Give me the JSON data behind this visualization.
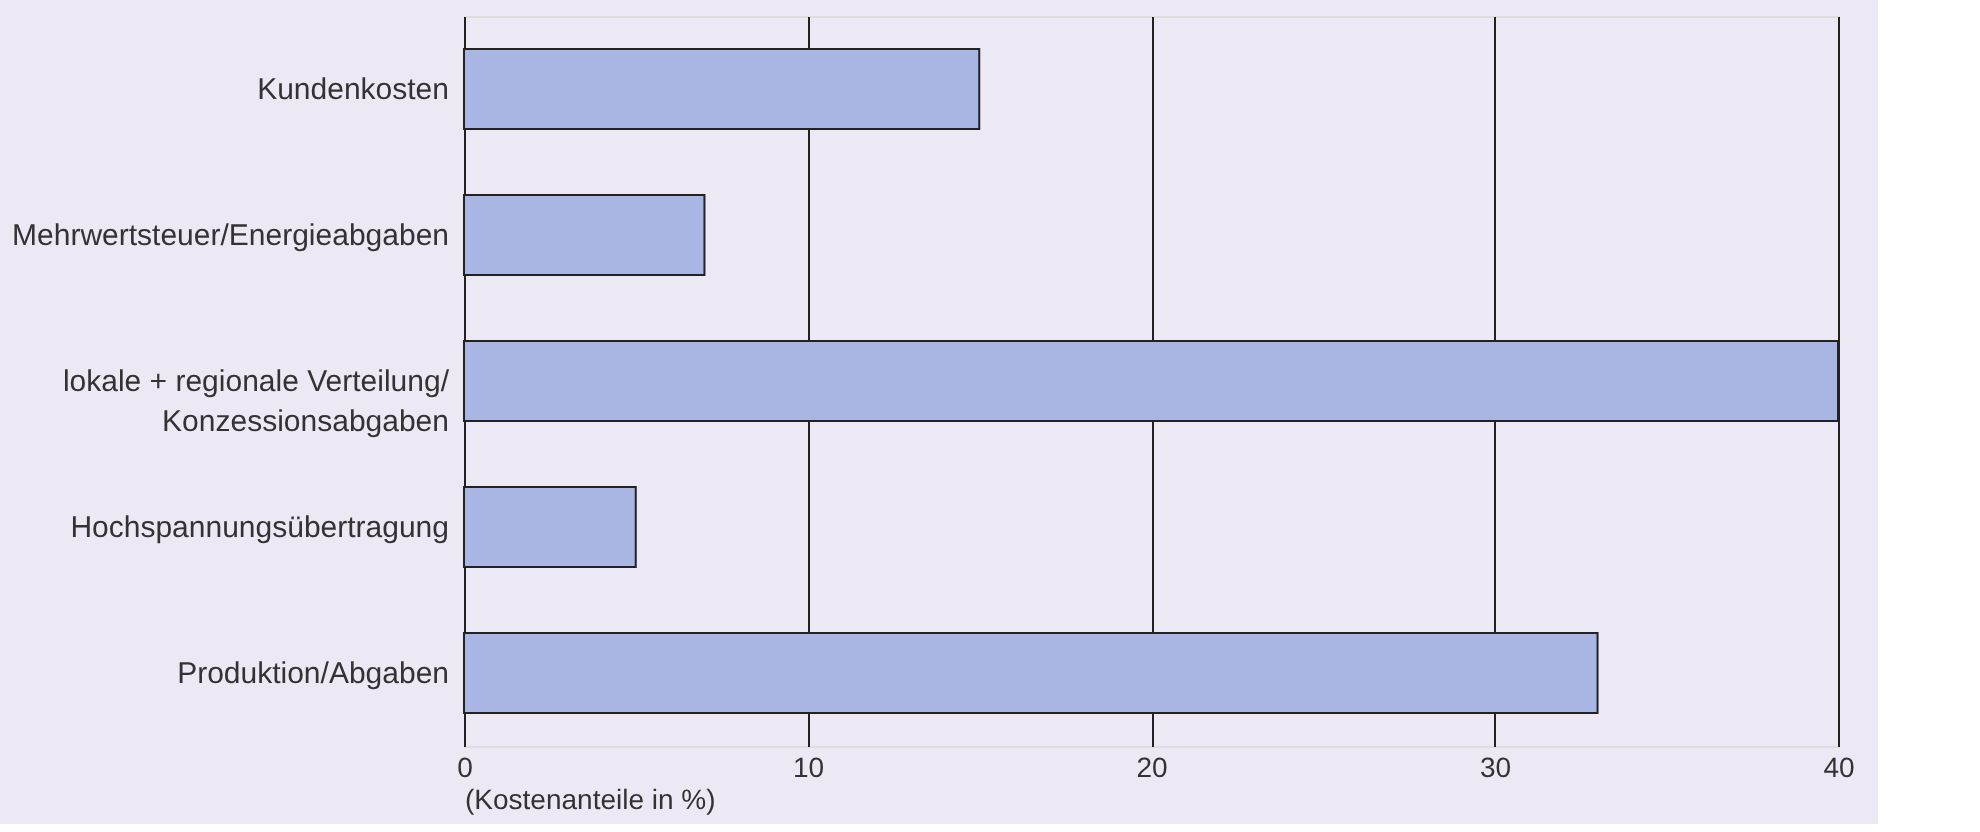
{
  "chart_data": {
    "type": "bar",
    "orientation": "horizontal",
    "xlabel": "(Kostenanteile in %)",
    "categories": [
      "Kundenkosten",
      "Mehrwertsteuer/Energieabgaben",
      "lokale + regionale Verteilung/\nKonzessionsabgaben",
      "Hochspannungsübertragung",
      "Produktion/Abgaben"
    ],
    "values": [
      15,
      7,
      40,
      5,
      33
    ],
    "color": "#a9b5e3",
    "xlim": [
      0,
      40
    ],
    "xticks": [
      0,
      10,
      20,
      30,
      40
    ],
    "grid": "x"
  }
}
